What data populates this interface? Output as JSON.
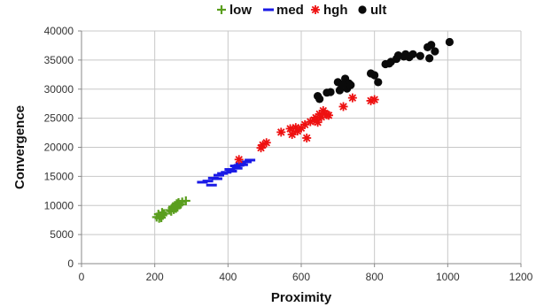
{
  "chart_data": {
    "type": "scatter",
    "title": "",
    "xlabel": "Proximity",
    "ylabel": "Convergence",
    "xlim": [
      0,
      1200
    ],
    "ylim": [
      0,
      40000
    ],
    "x_ticks": [
      0,
      200,
      400,
      600,
      800,
      1000,
      1200
    ],
    "y_ticks": [
      0,
      5000,
      10000,
      15000,
      20000,
      25000,
      30000,
      35000,
      40000
    ],
    "grid": true,
    "legend_placement": "top",
    "series": [
      {
        "name": "low",
        "marker": "plus",
        "color": "#5a9e1e",
        "points": [
          [
            205,
            8000
          ],
          [
            210,
            8500
          ],
          [
            212,
            7800
          ],
          [
            215,
            8200
          ],
          [
            218,
            7900
          ],
          [
            220,
            8800
          ],
          [
            222,
            8300
          ],
          [
            225,
            8600
          ],
          [
            240,
            9200
          ],
          [
            245,
            9000
          ],
          [
            248,
            9600
          ],
          [
            250,
            9800
          ],
          [
            252,
            9300
          ],
          [
            255,
            10000
          ],
          [
            258,
            9500
          ],
          [
            260,
            10300
          ],
          [
            262,
            9700
          ],
          [
            265,
            10500
          ],
          [
            270,
            10200
          ],
          [
            275,
            10600
          ],
          [
            285,
            10800
          ]
        ]
      },
      {
        "name": "med",
        "marker": "dash",
        "color": "#1a1ae6",
        "points": [
          [
            330,
            14000
          ],
          [
            345,
            14200
          ],
          [
            355,
            13500
          ],
          [
            360,
            14700
          ],
          [
            370,
            14600
          ],
          [
            375,
            15200
          ],
          [
            385,
            15500
          ],
          [
            395,
            15700
          ],
          [
            405,
            16200
          ],
          [
            410,
            15900
          ],
          [
            420,
            16800
          ],
          [
            425,
            16400
          ],
          [
            430,
            16900
          ],
          [
            435,
            17200
          ],
          [
            440,
            17000
          ],
          [
            450,
            17500
          ],
          [
            460,
            17800
          ]
        ]
      },
      {
        "name": "hgh",
        "marker": "asterisk",
        "color": "#ee1111",
        "points": [
          [
            430,
            17900
          ],
          [
            490,
            19900
          ],
          [
            495,
            20400
          ],
          [
            505,
            20800
          ],
          [
            545,
            22600
          ],
          [
            570,
            23200
          ],
          [
            575,
            22200
          ],
          [
            585,
            23400
          ],
          [
            590,
            22800
          ],
          [
            600,
            23300
          ],
          [
            610,
            23900
          ],
          [
            615,
            21600
          ],
          [
            625,
            24400
          ],
          [
            635,
            24700
          ],
          [
            640,
            25100
          ],
          [
            645,
            24300
          ],
          [
            650,
            25700
          ],
          [
            655,
            25200
          ],
          [
            660,
            26300
          ],
          [
            665,
            25800
          ],
          [
            670,
            25600
          ],
          [
            675,
            25500
          ],
          [
            715,
            27000
          ],
          [
            740,
            28500
          ],
          [
            790,
            28000
          ],
          [
            800,
            28200
          ]
        ]
      },
      {
        "name": "ult",
        "marker": "circle",
        "color": "#0a0a0a",
        "points": [
          [
            645,
            28800
          ],
          [
            650,
            28300
          ],
          [
            670,
            29400
          ],
          [
            680,
            29500
          ],
          [
            700,
            31200
          ],
          [
            705,
            29800
          ],
          [
            710,
            30800
          ],
          [
            720,
            31800
          ],
          [
            725,
            30100
          ],
          [
            730,
            31000
          ],
          [
            735,
            30700
          ],
          [
            790,
            32700
          ],
          [
            800,
            32400
          ],
          [
            810,
            31200
          ],
          [
            830,
            34300
          ],
          [
            840,
            34400
          ],
          [
            845,
            34700
          ],
          [
            860,
            35200
          ],
          [
            865,
            35800
          ],
          [
            880,
            35600
          ],
          [
            885,
            36000
          ],
          [
            895,
            35500
          ],
          [
            905,
            36000
          ],
          [
            925,
            35700
          ],
          [
            945,
            37200
          ],
          [
            950,
            35300
          ],
          [
            955,
            37600
          ],
          [
            965,
            36500
          ],
          [
            1005,
            38100
          ]
        ]
      }
    ]
  }
}
